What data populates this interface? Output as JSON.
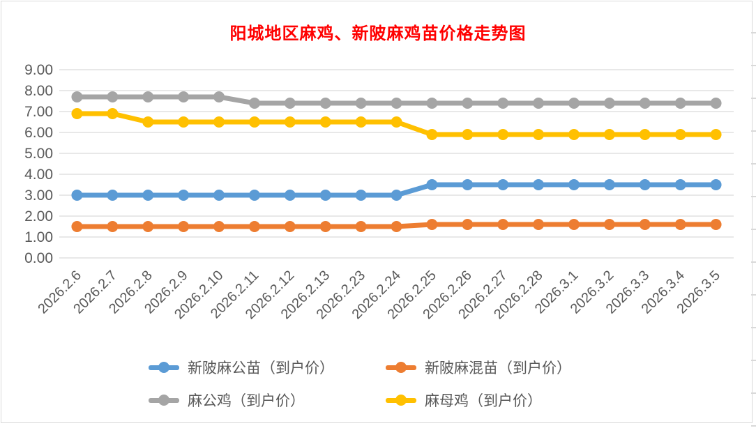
{
  "window": {
    "background": "#FFFFFF",
    "border_color": "#D9D9D9"
  },
  "title": {
    "text": "阳城地区麻鸡、新陂麻鸡苗价格走势图",
    "color": "#FF0000"
  },
  "chart_data": {
    "type": "line",
    "title": "阳城地区麻鸡、新陂麻鸡苗价格走势图",
    "categories": [
      "2026.2.6",
      "2026.2.7",
      "2026.2.8",
      "2026.2.9",
      "2026.2.10",
      "2026.2.11",
      "2026.2.12",
      "2026.2.13",
      "2026.2.23",
      "2026.2.24",
      "2026.2.25",
      "2026.2.26",
      "2026.2.27",
      "2026.2.28",
      "2026.3.1",
      "2026.3.2",
      "2026.3.3",
      "2026.3.4",
      "2026.3.5"
    ],
    "series": [
      {
        "name": "新陂麻公苗（到户价）",
        "color": "#5B9BD5",
        "values": [
          3.0,
          3.0,
          3.0,
          3.0,
          3.0,
          3.0,
          3.0,
          3.0,
          3.0,
          3.0,
          3.5,
          3.5,
          3.5,
          3.5,
          3.5,
          3.5,
          3.5,
          3.5,
          3.5
        ]
      },
      {
        "name": "新陂麻混苗（到户价）",
        "color": "#ED7D31",
        "values": [
          1.5,
          1.5,
          1.5,
          1.5,
          1.5,
          1.5,
          1.5,
          1.5,
          1.5,
          1.5,
          1.6,
          1.6,
          1.6,
          1.6,
          1.6,
          1.6,
          1.6,
          1.6,
          1.6
        ]
      },
      {
        "name": "麻公鸡（到户价）",
        "color": "#A5A5A5",
        "values": [
          7.7,
          7.7,
          7.7,
          7.7,
          7.7,
          7.4,
          7.4,
          7.4,
          7.4,
          7.4,
          7.4,
          7.4,
          7.4,
          7.4,
          7.4,
          7.4,
          7.4,
          7.4,
          7.4
        ]
      },
      {
        "name": "麻母鸡（到户价）",
        "color": "#FFC000",
        "values": [
          6.9,
          6.9,
          6.5,
          6.5,
          6.5,
          6.5,
          6.5,
          6.5,
          6.5,
          6.5,
          5.9,
          5.9,
          5.9,
          5.9,
          5.9,
          5.9,
          5.9,
          5.9,
          5.9
        ]
      }
    ],
    "ylim": [
      0,
      9
    ],
    "y_ticks": [
      "0.00",
      "1.00",
      "2.00",
      "3.00",
      "4.00",
      "5.00",
      "6.00",
      "7.00",
      "8.00",
      "9.00"
    ],
    "grid": true,
    "gridline_color": "#D9D9D9",
    "axis_label_color": "#595959",
    "xlabel": "",
    "ylabel": "",
    "legend_position": "bottom",
    "marker": "circle"
  }
}
